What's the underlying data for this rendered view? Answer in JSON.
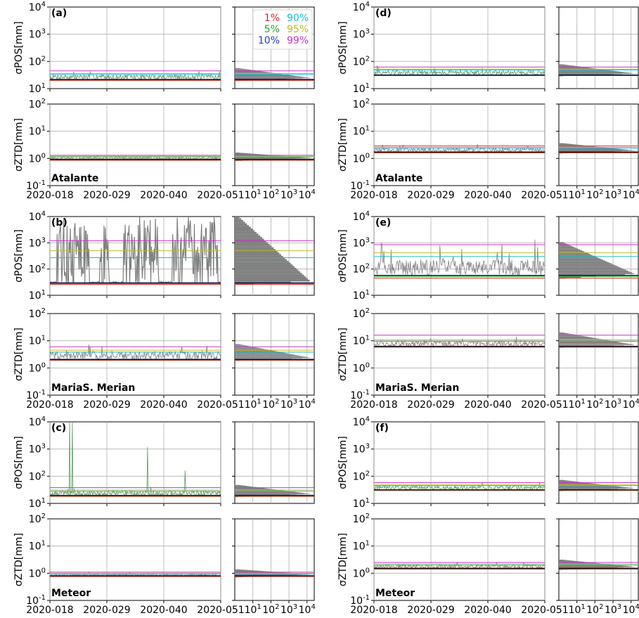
{
  "figure": {
    "xtick_labels": [
      "2020-018",
      "2020-029",
      "2020-040",
      "2020-051"
    ],
    "hist_xtick_labels": [
      "10^1",
      "10^2",
      "10^3",
      "10^4"
    ],
    "ylabel_pos": "σPOS[mm]",
    "ylabel_ztd": "σZTD[mm]",
    "legend": [
      {
        "label": "1%",
        "color": "#d62728"
      },
      {
        "label": "5%",
        "color": "#2ca02c"
      },
      {
        "label": "10%",
        "color": "#1f3fbf"
      },
      {
        "label": "90%",
        "color": "#17becf"
      },
      {
        "label": "95%",
        "color": "#bcbd22"
      },
      {
        "label": "99%",
        "color": "#cc33cc"
      }
    ],
    "colors": {
      "trace": "#808080",
      "hist": "#7f7f7f",
      "green_trace": "#5a9a5a",
      "grid": "#b0b0b0",
      "black_line": "#000000"
    }
  },
  "chart_data": [
    {
      "type": "line",
      "panel": "(a)",
      "quantity": "POS",
      "station": "",
      "ylim": [
        10,
        10000
      ],
      "yscale": "log",
      "xlim": [
        "2020-018",
        "2020-051"
      ],
      "percentiles": {
        "1": 20,
        "5": 21,
        "10": 22,
        "90": 33,
        "95": 36,
        "99": 45
      }
    },
    {
      "type": "line",
      "panel": "(a)",
      "quantity": "ZTD",
      "station": "Atalante",
      "ylim": [
        0.1,
        100
      ],
      "yscale": "log",
      "xlim": [
        "2020-018",
        "2020-051"
      ],
      "percentiles": {
        "1": 0.85,
        "5": 0.9,
        "10": 0.93,
        "90": 1.15,
        "95": 1.2,
        "99": 1.3
      }
    },
    {
      "type": "line",
      "panel": "(b)",
      "quantity": "POS",
      "station": "",
      "ylim": [
        10,
        10000
      ],
      "yscale": "log",
      "xlim": [
        "2020-018",
        "2020-051"
      ],
      "percentiles": {
        "1": 26,
        "5": 28,
        "10": 30,
        "90": 270,
        "95": 500,
        "99": 1200
      }
    },
    {
      "type": "line",
      "panel": "(b)",
      "quantity": "ZTD",
      "station": "MariaS. Merian",
      "ylim": [
        0.1,
        100
      ],
      "yscale": "log",
      "xlim": [
        "2020-018",
        "2020-051"
      ],
      "percentiles": {
        "1": 1.9,
        "5": 2.0,
        "10": 2.1,
        "90": 3.8,
        "95": 4.5,
        "99": 6.0
      }
    },
    {
      "type": "line",
      "panel": "(c)",
      "quantity": "POS",
      "station": "",
      "ylim": [
        10,
        10000
      ],
      "yscale": "log",
      "xlim": [
        "2020-018",
        "2020-051"
      ],
      "percentiles": {
        "1": 18,
        "5": 19,
        "10": 20,
        "90": 28,
        "95": 31,
        "99": 38
      }
    },
    {
      "type": "line",
      "panel": "(c)",
      "quantity": "ZTD",
      "station": "Meteor",
      "ylim": [
        0.1,
        100
      ],
      "yscale": "log",
      "xlim": [
        "2020-018",
        "2020-051"
      ],
      "percentiles": {
        "1": 0.75,
        "5": 0.8,
        "10": 0.82,
        "90": 0.95,
        "95": 1.0,
        "99": 1.1
      }
    },
    {
      "type": "line",
      "panel": "(d)",
      "quantity": "POS",
      "station": "",
      "ylim": [
        10,
        10000
      ],
      "yscale": "log",
      "xlim": [
        "2020-018",
        "2020-051"
      ],
      "percentiles": {
        "1": 30,
        "5": 31,
        "10": 32,
        "90": 48,
        "95": 52,
        "99": 62
      }
    },
    {
      "type": "line",
      "panel": "(d)",
      "quantity": "ZTD",
      "station": "Atalante",
      "ylim": [
        0.1,
        100
      ],
      "yscale": "log",
      "xlim": [
        "2020-018",
        "2020-051"
      ],
      "percentiles": {
        "1": 1.6,
        "5": 1.7,
        "10": 1.75,
        "90": 2.4,
        "95": 2.6,
        "99": 2.9
      }
    },
    {
      "type": "line",
      "panel": "(e)",
      "quantity": "POS",
      "station": "",
      "ylim": [
        10,
        10000
      ],
      "yscale": "log",
      "xlim": [
        "2020-018",
        "2020-051"
      ],
      "percentiles": {
        "1": 45,
        "5": 52,
        "10": 58,
        "90": 300,
        "95": 420,
        "99": 850
      }
    },
    {
      "type": "line",
      "panel": "(e)",
      "quantity": "ZTD",
      "station": "MariaS. Merian",
      "ylim": [
        0.1,
        100
      ],
      "yscale": "log",
      "xlim": [
        "2020-018",
        "2020-051"
      ],
      "percentiles": {
        "1": 5.8,
        "5": 6.1,
        "10": 6.3,
        "90": 9.5,
        "95": 11,
        "99": 16
      }
    },
    {
      "type": "line",
      "panel": "(f)",
      "quantity": "POS",
      "station": "",
      "ylim": [
        10,
        10000
      ],
      "yscale": "log",
      "xlim": [
        "2020-018",
        "2020-051"
      ],
      "percentiles": {
        "1": 30,
        "5": 31,
        "10": 32,
        "90": 45,
        "95": 48,
        "99": 58
      }
    },
    {
      "type": "line",
      "panel": "(f)",
      "quantity": "ZTD",
      "station": "Meteor",
      "ylim": [
        0.1,
        100
      ],
      "yscale": "log",
      "xlim": [
        "2020-018",
        "2020-051"
      ],
      "percentiles": {
        "1": 1.4,
        "5": 1.5,
        "10": 1.55,
        "90": 2.0,
        "95": 2.2,
        "99": 2.5
      }
    }
  ]
}
